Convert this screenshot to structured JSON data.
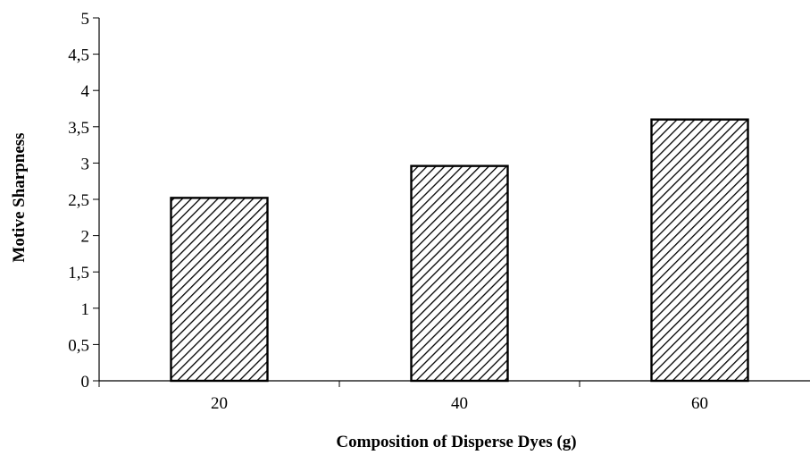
{
  "chart_data": {
    "type": "bar",
    "title": "",
    "xlabel": "Composition of Disperse Dyes (g)",
    "ylabel": "Motive Sharpness",
    "categories": [
      "20",
      "40",
      "60"
    ],
    "values": [
      2.52,
      2.96,
      3.6
    ],
    "ylim": [
      0,
      5
    ],
    "yticks": [
      "0",
      "0,5",
      "1",
      "1,5",
      "2",
      "2,5",
      "3",
      "3,5",
      "4",
      "4,5",
      "5"
    ],
    "grid": false,
    "legend": "none",
    "bar_fill": "diagonal hatch",
    "colors": {
      "axis": "#000000",
      "bar_outline": "#000000",
      "hatch": "#000000",
      "background": "#ffffff"
    }
  }
}
